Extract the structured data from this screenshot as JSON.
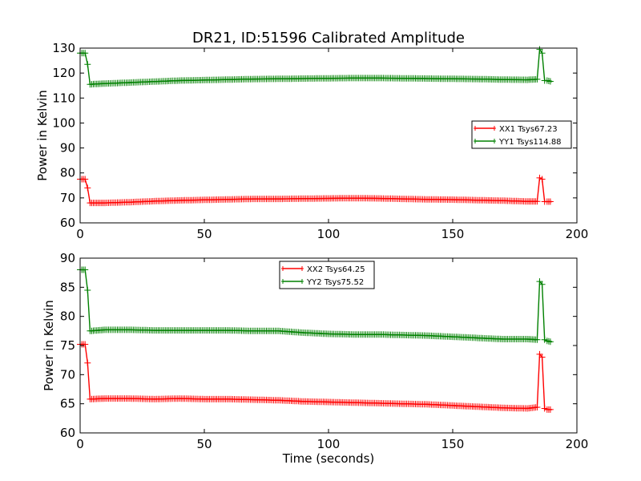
{
  "chart_data": [
    {
      "type": "line",
      "title": "DR21, ID:51596 Calibrated Amplitude",
      "xlabel": "",
      "ylabel": "Power in Kelvin",
      "xlim": [
        0,
        200
      ],
      "ylim": [
        60,
        130
      ],
      "xticks": [
        "0",
        "50",
        "100",
        "150",
        "200"
      ],
      "yticks": [
        "60",
        "70",
        "80",
        "90",
        "100",
        "110",
        "120",
        "130"
      ],
      "grid": false,
      "legend_position": "center-right",
      "series": [
        {
          "name": "XX1 Tsys67.23",
          "color": "#ff0000",
          "x": [
            0,
            2,
            3,
            4,
            10,
            20,
            30,
            40,
            50,
            60,
            70,
            80,
            90,
            100,
            110,
            120,
            130,
            140,
            150,
            160,
            170,
            180,
            184,
            185,
            186,
            187,
            188,
            190
          ],
          "y": [
            77.5,
            77.5,
            74,
            68,
            68,
            68.3,
            68.7,
            69,
            69.2,
            69.4,
            69.6,
            69.6,
            69.7,
            69.8,
            69.9,
            69.8,
            69.6,
            69.4,
            69.3,
            69.1,
            68.9,
            68.6,
            68.6,
            78,
            77.5,
            68.5,
            68.5,
            68.5
          ]
        },
        {
          "name": "YY1 Tsys114.88",
          "color": "#008000",
          "x": [
            0,
            2,
            3,
            4,
            10,
            20,
            30,
            40,
            50,
            60,
            70,
            80,
            90,
            100,
            110,
            120,
            130,
            140,
            150,
            160,
            170,
            180,
            184,
            185,
            186,
            187,
            188,
            190
          ],
          "y": [
            128,
            128,
            123.5,
            115.5,
            115.8,
            116.2,
            116.6,
            117,
            117.2,
            117.4,
            117.6,
            117.7,
            117.8,
            117.9,
            118,
            118,
            117.9,
            117.8,
            117.7,
            117.6,
            117.4,
            117.3,
            117.5,
            129.5,
            128,
            117,
            117,
            116.5
          ]
        }
      ]
    },
    {
      "type": "line",
      "title": "",
      "xlabel": "Time (seconds)",
      "ylabel": "Power in Kelvin",
      "xlim": [
        0,
        200
      ],
      "ylim": [
        60,
        90
      ],
      "xticks": [
        "0",
        "50",
        "100",
        "150",
        "200"
      ],
      "yticks": [
        "60",
        "65",
        "70",
        "75",
        "80",
        "85",
        "90"
      ],
      "grid": false,
      "legend_position": "top-center",
      "series": [
        {
          "name": "XX2 Tsys64.25",
          "color": "#ff0000",
          "x": [
            0,
            2,
            3,
            4,
            10,
            20,
            30,
            40,
            50,
            60,
            70,
            80,
            90,
            100,
            110,
            120,
            130,
            140,
            150,
            160,
            170,
            180,
            184,
            185,
            186,
            187,
            188,
            190
          ],
          "y": [
            75.2,
            75.2,
            72,
            65.8,
            65.9,
            65.9,
            65.8,
            65.9,
            65.8,
            65.8,
            65.7,
            65.6,
            65.4,
            65.3,
            65.2,
            65.1,
            65,
            64.9,
            64.7,
            64.5,
            64.3,
            64.2,
            64.4,
            73.5,
            73,
            64.2,
            64,
            64
          ],
          "markers": true
        },
        {
          "name": "YY2 Tsys75.52",
          "color": "#008000",
          "x": [
            0,
            2,
            3,
            4,
            10,
            20,
            30,
            40,
            50,
            60,
            70,
            80,
            90,
            100,
            110,
            120,
            130,
            140,
            150,
            160,
            170,
            180,
            184,
            185,
            186,
            187,
            188,
            190
          ],
          "y": [
            88,
            88,
            84.5,
            77.5,
            77.7,
            77.7,
            77.6,
            77.6,
            77.6,
            77.6,
            77.5,
            77.5,
            77.2,
            77,
            76.9,
            76.9,
            76.8,
            76.7,
            76.5,
            76.3,
            76.1,
            76.1,
            76,
            86,
            85.5,
            76,
            75.8,
            75.6
          ]
        }
      ]
    }
  ]
}
